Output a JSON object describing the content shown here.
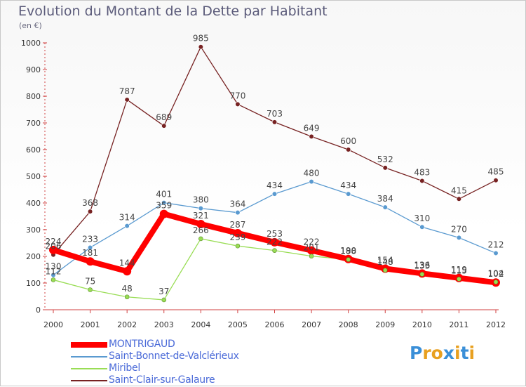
{
  "title": "Evolution du Montant de la Dette par Habitant",
  "unit_label": "(en €)",
  "brand": {
    "text": "Proxiti",
    "letters": [
      "P",
      "r",
      "o",
      "x",
      "i",
      "t",
      "i"
    ],
    "colors": [
      "#3a8fd8",
      "#e8a020",
      "#e8a020",
      "#3a8fd8",
      "#e8a020",
      "#3a8fd8",
      "#e8a020"
    ]
  },
  "chart_data": {
    "type": "line",
    "x": [
      "2000",
      "2001",
      "2002",
      "2003",
      "2004",
      "2005",
      "2006",
      "2007",
      "2008",
      "2009",
      "2010",
      "2011",
      "2012"
    ],
    "ylim": [
      0,
      1000
    ],
    "yticks": [
      0,
      100,
      200,
      300,
      400,
      500,
      600,
      700,
      800,
      900,
      1000
    ],
    "grid": false,
    "legend_position": "bottom-left",
    "series": [
      {
        "name": "MONTRIGAUD",
        "color": "#ff0000",
        "values": [
          224,
          181,
          144,
          359,
          321,
          287,
          253,
          222,
          190,
          154,
          136,
          119,
          102
        ],
        "labels": [
          "224",
          "181",
          "144",
          "359",
          "321",
          "287",
          "253",
          "222",
          "190",
          "154",
          "136",
          "119",
          "102"
        ]
      },
      {
        "name": "Saint-Bonnet-de-Valclérieux",
        "color": "#5a9ad0",
        "values": [
          130,
          233,
          314,
          401,
          380,
          364,
          434,
          480,
          434,
          384,
          310,
          270,
          212
        ],
        "labels": [
          "130",
          "233",
          "314",
          "401",
          "380",
          "364",
          "434",
          "480",
          "434",
          "384",
          "310",
          "270",
          "212"
        ]
      },
      {
        "name": "Miribel",
        "color": "#99dd55",
        "values": [
          112,
          75,
          48,
          37,
          266,
          239,
          222,
          201,
          188,
          148,
          133,
          115,
          104
        ],
        "labels": [
          "112",
          "75",
          "48",
          "37",
          "266",
          "239",
          "222",
          "201",
          "188",
          "148",
          "133",
          "115",
          "104"
        ]
      },
      {
        "name": "Saint-Clair-sur-Galaure",
        "color": "#772222",
        "values": [
          206,
          368,
          787,
          689,
          985,
          770,
          703,
          649,
          600,
          532,
          483,
          415,
          485
        ],
        "labels": [
          "206",
          "368",
          "787",
          "689",
          "985",
          "770",
          "703",
          "649",
          "600",
          "532",
          "483",
          "415",
          "485"
        ]
      }
    ]
  }
}
